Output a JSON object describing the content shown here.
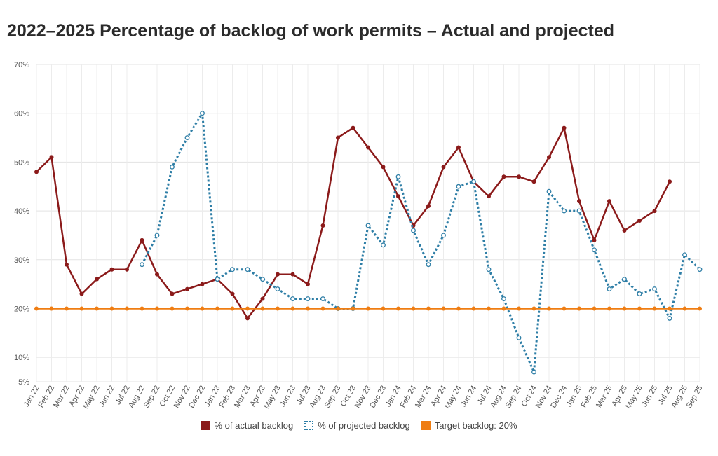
{
  "chart_data": {
    "type": "line",
    "title": "2022–2025 Percentage of backlog of work permits – Actual and projected",
    "xlabel": "",
    "ylabel": "",
    "ylim": [
      5,
      70
    ],
    "yticks": [
      "5%",
      "10%",
      "20%",
      "30%",
      "40%",
      "50%",
      "60%",
      "70%"
    ],
    "ytick_values": [
      5,
      10,
      20,
      30,
      40,
      50,
      60,
      70
    ],
    "categories": [
      "Jan 22",
      "Feb 22",
      "Mar 22",
      "Apr 22",
      "May 22",
      "Jun 22",
      "Jul 22",
      "Aug 22",
      "Sep 22",
      "Oct 22",
      "Nov 22",
      "Dec 22",
      "Jan 23",
      "Feb 23",
      "Mar 23",
      "Apr 23",
      "May 23",
      "Jun 23",
      "Jul 23",
      "Aug 23",
      "Sep 23",
      "Oct 23",
      "Nov 23",
      "Dec 23",
      "Jan 24",
      "Feb 24",
      "Mar 24",
      "Apr 24",
      "May 24",
      "Jun 24",
      "Jul 24",
      "Aug 24",
      "Sep 24",
      "Oct 24",
      "Nov 24",
      "Dec 24",
      "Jan 25",
      "Feb 25",
      "Mar 25",
      "Apr 25",
      "May 25",
      "Jun 25",
      "Jul 25",
      "Aug 25",
      "Sep 25"
    ],
    "series": [
      {
        "name": "% of actual backlog",
        "color": "#8b1a1a",
        "style": "solid",
        "values": [
          48,
          51,
          29,
          23,
          26,
          28,
          28,
          34,
          27,
          23,
          24,
          25,
          26,
          23,
          18,
          22,
          27,
          27,
          25,
          37,
          55,
          57,
          53,
          49,
          43,
          37,
          41,
          49,
          53,
          46,
          43,
          47,
          47,
          46,
          51,
          57,
          42,
          34,
          42,
          36,
          38,
          40,
          46,
          null,
          null
        ]
      },
      {
        "name": "% of projected backlog",
        "color": "#2e7ea6",
        "style": "dotted",
        "values": [
          null,
          null,
          null,
          null,
          null,
          null,
          null,
          29,
          35,
          49,
          55,
          60,
          26,
          28,
          28,
          26,
          24,
          22,
          22,
          22,
          20,
          20,
          37,
          33,
          47,
          36,
          29,
          35,
          45,
          46,
          28,
          22,
          14,
          7,
          44,
          40,
          40,
          32,
          24,
          26,
          23,
          24,
          18,
          31,
          28
        ]
      },
      {
        "name": "Target backlog: 20%",
        "color": "#ef7d12",
        "style": "solid",
        "values": [
          20,
          20,
          20,
          20,
          20,
          20,
          20,
          20,
          20,
          20,
          20,
          20,
          20,
          20,
          20,
          20,
          20,
          20,
          20,
          20,
          20,
          20,
          20,
          20,
          20,
          20,
          20,
          20,
          20,
          20,
          20,
          20,
          20,
          20,
          20,
          20,
          20,
          20,
          20,
          20,
          20,
          20,
          20,
          20,
          20
        ]
      }
    ]
  },
  "legend": {
    "actual": "% of actual backlog",
    "projected": "% of projected backlog",
    "target": "Target backlog: 20%"
  }
}
